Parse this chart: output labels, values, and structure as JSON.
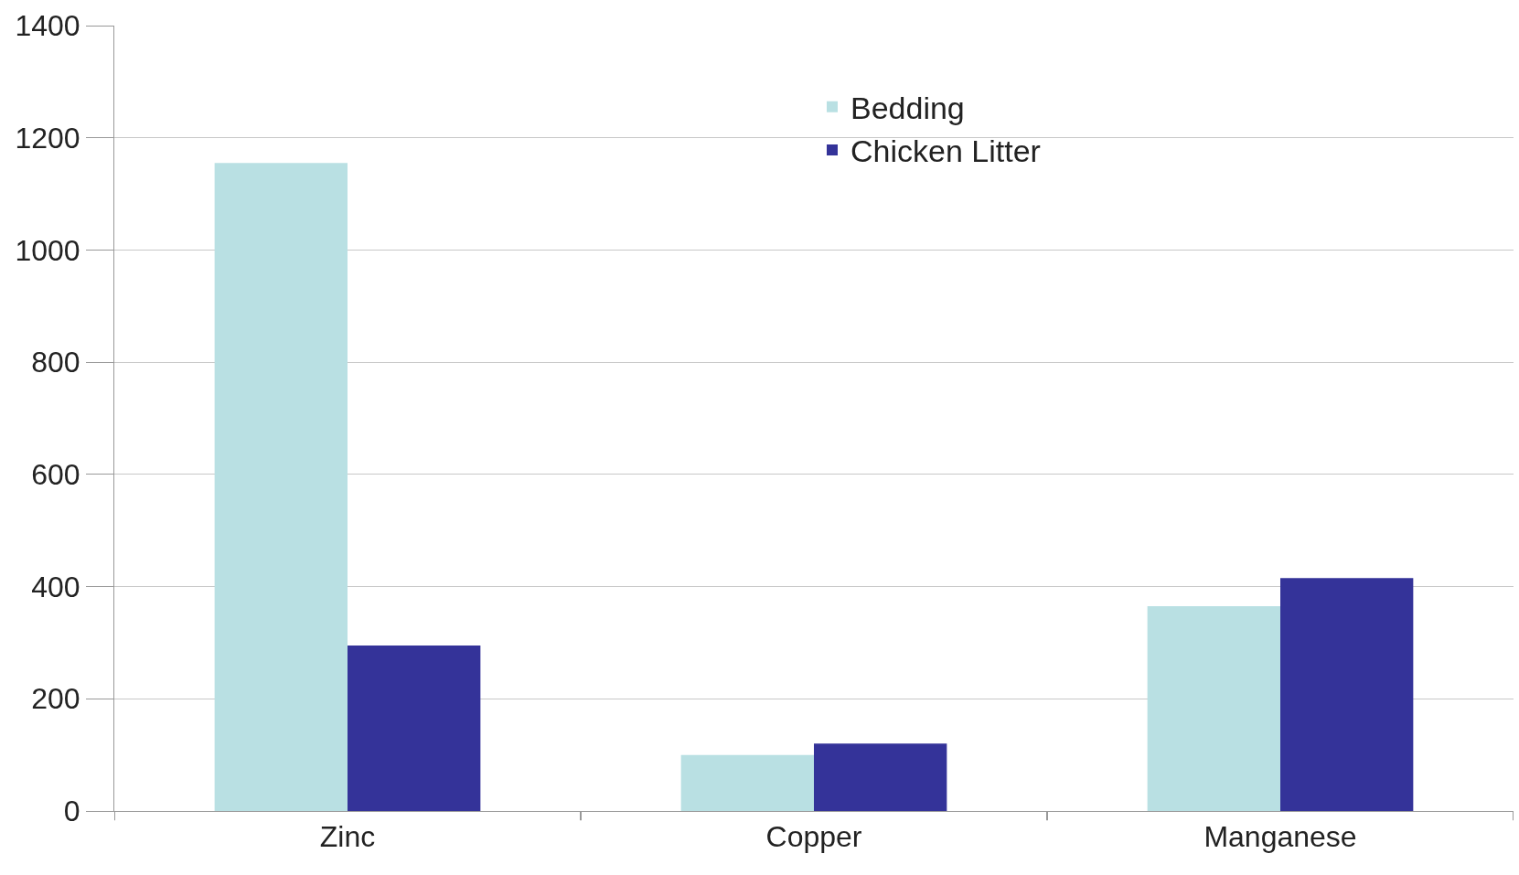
{
  "chart_data": {
    "type": "bar",
    "categories": [
      "Zinc",
      "Copper",
      "Manganese"
    ],
    "series": [
      {
        "name": "Bedding",
        "color": "#b9e0e3",
        "values": [
          1155,
          100,
          365
        ]
      },
      {
        "name": "Chicken Litter",
        "color": "#343399",
        "values": [
          295,
          120,
          415
        ]
      }
    ],
    "ylim": [
      0,
      1400
    ],
    "yticks": [
      0,
      200,
      400,
      600,
      800,
      1000,
      1200,
      1400
    ],
    "grid": "y",
    "legend": "top right"
  }
}
